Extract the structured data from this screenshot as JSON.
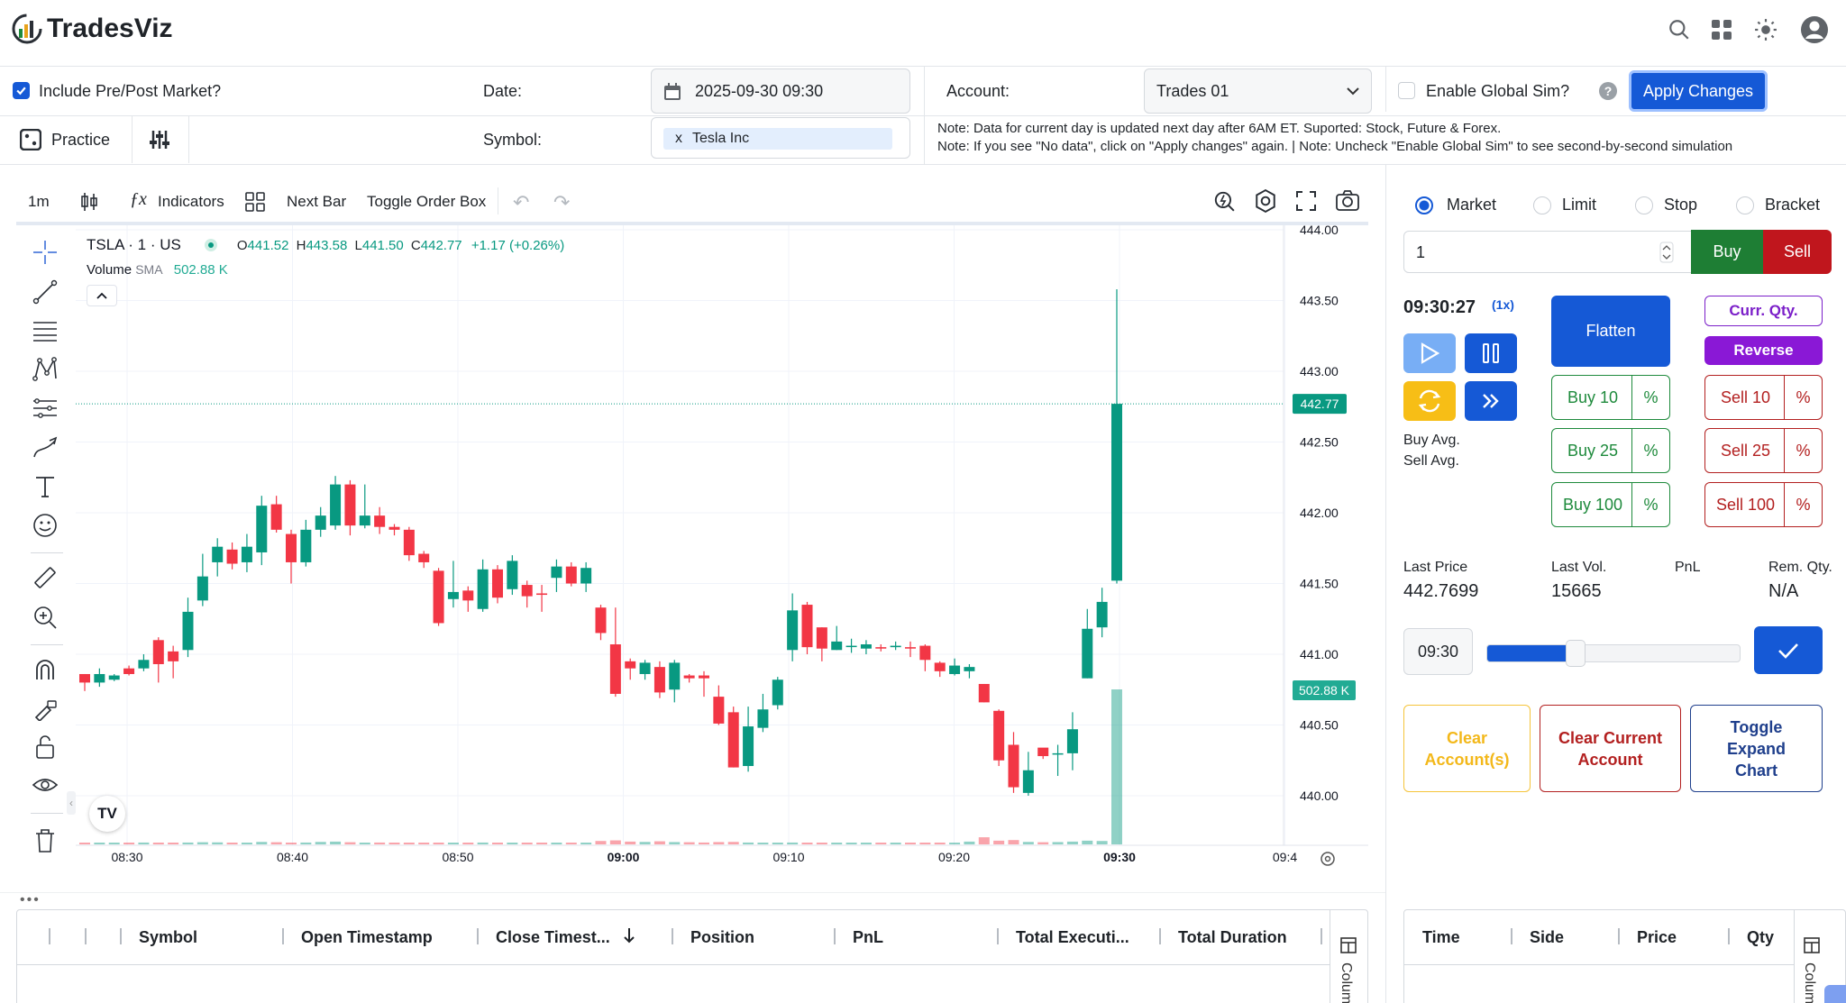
{
  "brand": {
    "name": "TradesViz"
  },
  "settings": {
    "include_prepost_label": "Include Pre/Post Market?",
    "date_label": "Date:",
    "date_value": "2025-09-30 09:30",
    "account_label": "Account:",
    "account_value": "Trades 01",
    "global_sim_label": "Enable Global Sim?",
    "apply_label": "Apply Changes",
    "practice_label": "Practice",
    "symbol_label": "Symbol:",
    "symbol_chip": "Tesla Inc",
    "symbol_chip_remove": "x",
    "note1": "Note: Data for current day is updated next day after 6AM ET. Suported: Stock, Future & Forex.",
    "note2": "Note: If you see \"No data\", click on \"Apply changes\" again. | Note: Uncheck \"Enable Global Sim\" to see second-by-second simulation"
  },
  "chart_toolbar": {
    "interval": "1m",
    "indicators": "Indicators",
    "next_bar": "Next Bar",
    "toggle_order_box": "Toggle Order Box"
  },
  "legend": {
    "symbol": "TSLA · 1 · US",
    "o_label": "O",
    "o_value": "441.52",
    "h_label": "H",
    "h_value": "443.58",
    "l_label": "L",
    "l_value": "441.50",
    "c_label": "C",
    "c_value": "442.77",
    "change": "+1.17 (+0.26%)",
    "volume_label": "Volume",
    "sma_label": "SMA",
    "volume_value": "502.88 K"
  },
  "chart_data": {
    "type": "candlestick",
    "symbol": "TSLA",
    "interval": "1m",
    "y_ticks": [
      "444.00",
      "443.50",
      "443.00",
      "442.50",
      "442.00",
      "441.50",
      "441.00",
      "440.50",
      "440.00"
    ],
    "x_ticks": [
      "08:30",
      "08:40",
      "08:50",
      "09:00",
      "09:10",
      "09:20",
      "09:30",
      "09:4"
    ],
    "last_price_tag": "442.77",
    "volume_tag": "502.88 K",
    "ylim": [
      439.8,
      444.0
    ],
    "candles": [
      [
        440.86,
        440.8,
        440.86,
        440.74
      ],
      [
        440.8,
        440.86,
        440.9,
        440.77
      ],
      [
        440.82,
        440.85,
        440.86,
        440.81
      ],
      [
        440.9,
        440.86,
        440.92,
        440.85
      ],
      [
        440.9,
        440.96,
        441.0,
        440.88
      ],
      [
        441.1,
        440.93,
        441.12,
        440.8
      ],
      [
        441.02,
        440.95,
        441.06,
        440.83
      ],
      [
        441.03,
        441.3,
        441.4,
        440.98
      ],
      [
        441.38,
        441.55,
        441.71,
        441.34
      ],
      [
        441.65,
        441.76,
        441.82,
        441.55
      ],
      [
        441.74,
        441.64,
        441.79,
        441.6
      ],
      [
        441.65,
        441.76,
        441.85,
        441.58
      ],
      [
        441.72,
        442.05,
        442.12,
        441.63
      ],
      [
        442.06,
        441.88,
        442.12,
        441.86
      ],
      [
        441.85,
        441.65,
        441.88,
        441.5
      ],
      [
        441.65,
        441.88,
        441.95,
        441.62
      ],
      [
        441.88,
        441.98,
        442.04,
        441.83
      ],
      [
        441.91,
        442.2,
        442.26,
        441.88
      ],
      [
        442.2,
        441.91,
        442.23,
        441.84
      ],
      [
        441.91,
        441.98,
        442.2,
        441.89
      ],
      [
        441.98,
        441.9,
        442.04,
        441.85
      ],
      [
        441.9,
        441.88,
        441.92,
        441.84
      ],
      [
        441.88,
        441.7,
        441.9,
        441.66
      ],
      [
        441.71,
        441.65,
        441.73,
        441.61
      ],
      [
        441.59,
        441.22,
        441.61,
        441.2
      ],
      [
        441.39,
        441.44,
        441.66,
        441.33
      ],
      [
        441.45,
        441.38,
        441.48,
        441.3
      ],
      [
        441.32,
        441.6,
        441.67,
        441.3
      ],
      [
        441.6,
        441.4,
        441.63,
        441.36
      ],
      [
        441.46,
        441.66,
        441.7,
        441.42
      ],
      [
        441.49,
        441.41,
        441.52,
        441.33
      ],
      [
        441.43,
        441.42,
        441.49,
        441.3
      ],
      [
        441.54,
        441.62,
        441.67,
        441.44
      ],
      [
        441.62,
        441.5,
        441.65,
        441.48
      ],
      [
        441.5,
        441.61,
        441.65,
        441.44
      ],
      [
        441.33,
        441.15,
        441.35,
        441.1
      ],
      [
        441.07,
        440.72,
        441.33,
        440.7
      ],
      [
        440.95,
        440.9,
        440.97,
        440.82
      ],
      [
        440.86,
        440.94,
        440.96,
        440.82
      ],
      [
        440.91,
        440.73,
        440.95,
        440.69
      ],
      [
        440.75,
        440.94,
        440.96,
        440.66
      ],
      [
        440.85,
        440.83,
        440.86,
        440.8
      ],
      [
        440.85,
        440.83,
        440.88,
        440.7
      ],
      [
        440.7,
        440.51,
        440.78,
        440.5
      ],
      [
        440.59,
        440.2,
        440.63,
        440.2
      ],
      [
        440.21,
        440.49,
        440.63,
        440.17
      ],
      [
        440.48,
        440.61,
        440.72,
        440.45
      ],
      [
        440.64,
        440.82,
        440.84,
        440.61
      ],
      [
        441.03,
        441.31,
        441.43,
        440.95
      ],
      [
        441.35,
        441.05,
        441.37,
        441.0
      ],
      [
        441.19,
        441.04,
        441.19,
        440.95
      ],
      [
        441.03,
        441.09,
        441.2,
        441.03
      ],
      [
        441.06,
        441.06,
        441.11,
        441.01
      ],
      [
        441.04,
        441.07,
        441.1,
        441.0
      ],
      [
        441.05,
        441.04,
        441.07,
        441.02
      ],
      [
        441.05,
        441.06,
        441.09,
        441.03
      ],
      [
        441.05,
        441.04,
        441.09,
        440.98
      ],
      [
        441.06,
        440.96,
        441.07,
        440.88
      ],
      [
        440.94,
        440.88,
        440.95,
        440.84
      ],
      [
        440.86,
        440.92,
        440.97,
        440.85
      ],
      [
        440.88,
        440.91,
        440.93,
        440.83
      ],
      [
        440.79,
        440.66,
        440.79,
        440.66
      ],
      [
        440.6,
        440.25,
        440.61,
        440.21
      ],
      [
        440.36,
        440.06,
        440.45,
        440.02
      ],
      [
        440.02,
        440.18,
        440.31,
        440.0
      ],
      [
        440.34,
        440.28,
        440.33,
        440.26
      ],
      [
        440.3,
        440.3,
        440.36,
        440.14
      ],
      [
        440.3,
        440.47,
        440.59,
        440.18
      ],
      [
        440.83,
        441.18,
        441.32,
        440.83
      ],
      [
        441.19,
        441.37,
        441.47,
        441.12
      ],
      [
        441.52,
        442.77,
        443.58,
        441.5
      ]
    ],
    "volumes": [
      0.006,
      0.009,
      0.007,
      0.011,
      0.012,
      0.008,
      0.01,
      0.012,
      0.014,
      0.013,
      0.011,
      0.01,
      0.016,
      0.014,
      0.009,
      0.012,
      0.016,
      0.018,
      0.014,
      0.011,
      0.012,
      0.01,
      0.011,
      0.008,
      0.009,
      0.011,
      0.01,
      0.012,
      0.01,
      0.011,
      0.009,
      0.01,
      0.011,
      0.008,
      0.01,
      0.022,
      0.026,
      0.018,
      0.016,
      0.02,
      0.015,
      0.014,
      0.012,
      0.015,
      0.016,
      0.012,
      0.01,
      0.011,
      0.012,
      0.009,
      0.008,
      0.009,
      0.008,
      0.007,
      0.008,
      0.007,
      0.009,
      0.01,
      0.011,
      0.01,
      0.018,
      0.046,
      0.024,
      0.028,
      0.016,
      0.014,
      0.015,
      0.018,
      0.024,
      0.022,
      1.0
    ]
  },
  "order_panel": {
    "order_types": [
      "Market",
      "Limit",
      "Stop",
      "Bracket"
    ],
    "qty_value": "1",
    "buy": "Buy",
    "sell": "Sell",
    "time": "09:30:27",
    "speed": "(1x)",
    "flatten": "Flatten",
    "curr_qty": "Curr. Qty.",
    "reverse": "Reverse",
    "buy10": "Buy 10",
    "buy25": "Buy 25",
    "buy100": "Buy 100",
    "sell10": "Sell 10",
    "sell25": "Sell 25",
    "sell100": "Sell 100",
    "pct": "%",
    "buy_avg": "Buy Avg.",
    "sell_avg": "Sell Avg.",
    "last_price_label": "Last Price",
    "last_price_value": "442.7699",
    "last_vol_label": "Last Vol.",
    "last_vol_value": "15665",
    "pnl_label": "PnL",
    "rem_qty_label": "Rem. Qty.",
    "rem_qty_value": "N/A",
    "slider_time": "09:30",
    "slider_fraction": 0.35,
    "clear_accounts": "Clear Account(s)",
    "clear_current": "Clear Current Account",
    "toggle_expand": "Toggle Expand Chart"
  },
  "trades_table": {
    "columns": [
      "Symbol",
      "Open Timestamp",
      "Close Timest...",
      "Position",
      "PnL",
      "Total Executi...",
      "Total Duration"
    ],
    "side_label": "Colum"
  },
  "exec_table": {
    "columns": [
      "Time",
      "Side",
      "Price",
      "Qty"
    ],
    "side_label": "Colum"
  }
}
